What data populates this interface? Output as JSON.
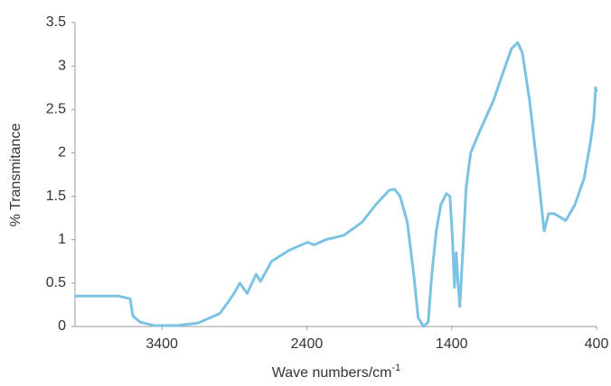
{
  "chart_data": {
    "type": "line",
    "xlabel": {
      "text": "Wave numbers/cm",
      "superscript": "-1"
    },
    "ylabel": "% Transmitance",
    "xlim": [
      4000,
      400
    ],
    "ylim": [
      0,
      3.5
    ],
    "xticks": [
      3400,
      2400,
      1400,
      400
    ],
    "yticks": [
      0,
      0.5,
      1,
      1.5,
      2,
      2.5,
      3,
      3.5
    ],
    "grid": false,
    "series": [
      {
        "color": "#7cc3e3",
        "x": [
          4000,
          3700,
          3620,
          3600,
          3550,
          3450,
          3300,
          3150,
          3000,
          2906,
          2862,
          2812,
          2750,
          2719,
          2644,
          2519,
          2394,
          2350,
          2269,
          2144,
          2019,
          1925,
          1831,
          1794,
          1756,
          1706,
          1662,
          1631,
          1594,
          1562,
          1537,
          1506,
          1475,
          1437,
          1412,
          1394,
          1381,
          1369,
          1356,
          1344,
          1325,
          1300,
          1269,
          1206,
          1112,
          1050,
          987,
          944,
          912,
          862,
          800,
          762,
          731,
          694,
          612,
          550,
          487,
          444,
          419,
          406,
          400
        ],
        "values": [
          0.35,
          0.35,
          0.32,
          0.12,
          0.05,
          0.01,
          0.01,
          0.04,
          0.15,
          0.37,
          0.5,
          0.38,
          0.6,
          0.52,
          0.75,
          0.88,
          0.97,
          0.94,
          1.0,
          1.05,
          1.2,
          1.4,
          1.57,
          1.58,
          1.5,
          1.2,
          0.6,
          0.1,
          0.0,
          0.05,
          0.6,
          1.1,
          1.4,
          1.53,
          1.5,
          1.0,
          0.45,
          0.85,
          0.5,
          0.23,
          0.8,
          1.6,
          2.0,
          2.25,
          2.6,
          2.9,
          3.2,
          3.27,
          3.15,
          2.6,
          1.7,
          1.1,
          1.3,
          1.3,
          1.22,
          1.4,
          1.7,
          2.1,
          2.4,
          2.75,
          2.7
        ]
      }
    ]
  }
}
